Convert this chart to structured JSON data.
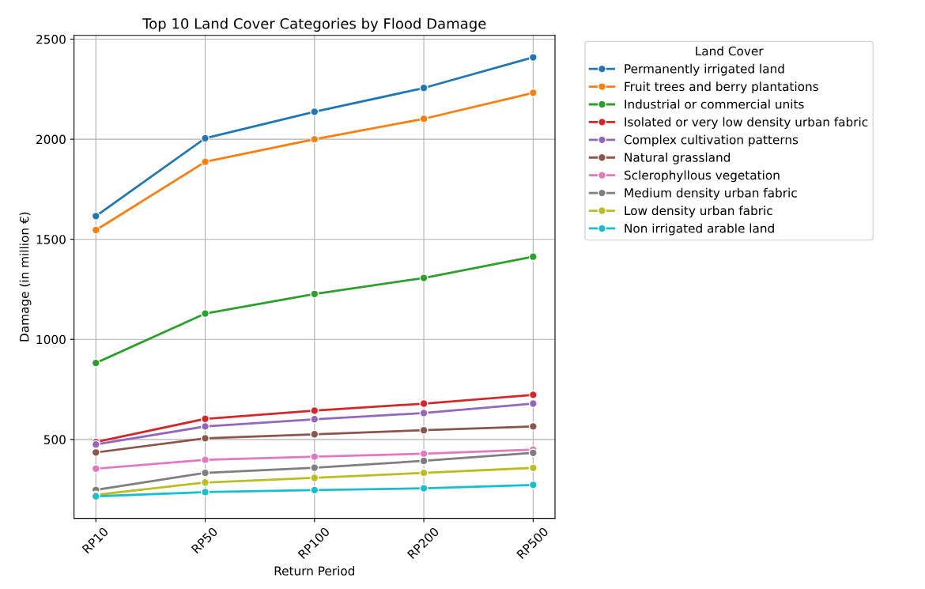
{
  "chart_data": {
    "type": "line",
    "title": "Top 10 Land Cover Categories by Flood Damage",
    "xlabel": "Return Period",
    "ylabel": "Damage (in million €)",
    "legend_title": "Land Cover",
    "categories": [
      "RP10",
      "RP50",
      "RP100",
      "RP200",
      "RP500"
    ],
    "series": [
      {
        "name": "Permanently irrigated land",
        "color": "#1f77b4",
        "values": [
          1616,
          2005,
          2137,
          2256,
          2409
        ]
      },
      {
        "name": "Fruit trees and berry plantations",
        "color": "#ff7f0e",
        "values": [
          1546,
          1887,
          2000,
          2102,
          2232
        ]
      },
      {
        "name": "Industrial or commercial units",
        "color": "#2ca02c",
        "values": [
          882,
          1129,
          1227,
          1307,
          1413
        ]
      },
      {
        "name": "Isolated or very low density urban fabric",
        "color": "#d62728",
        "values": [
          487,
          603,
          644,
          679,
          723
        ]
      },
      {
        "name": "Complex cultivation patterns",
        "color": "#9467bd",
        "values": [
          475,
          565,
          601,
          632,
          679
        ]
      },
      {
        "name": "Natural grassland",
        "color": "#8c564b",
        "values": [
          435,
          506,
          526,
          546,
          565
        ]
      },
      {
        "name": "Sclerophyllous vegetation",
        "color": "#e377c2",
        "values": [
          354,
          398,
          414,
          429,
          449
        ]
      },
      {
        "name": "Medium density urban fabric",
        "color": "#7f7f7f",
        "values": [
          248,
          333,
          359,
          393,
          433
        ]
      },
      {
        "name": "Low density urban fabric",
        "color": "#bcbd22",
        "values": [
          223,
          285,
          308,
          333,
          358
        ]
      },
      {
        "name": "Non irrigated arable land",
        "color": "#17becf",
        "values": [
          216,
          237,
          247,
          256,
          273
        ]
      }
    ],
    "ylim": [
      106,
      2519
    ],
    "yticks": [
      500,
      1000,
      1500,
      2000,
      2500
    ],
    "grid": true,
    "legend": "right",
    "marker": "circle",
    "line_style": "solid"
  }
}
